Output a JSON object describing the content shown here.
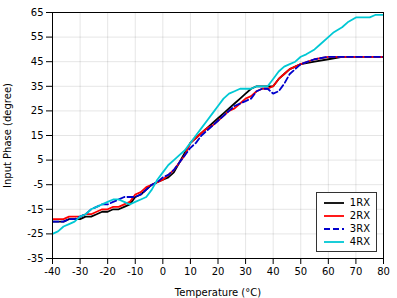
{
  "chart_data": {
    "type": "line",
    "xlabel": "Temperature (°C)",
    "ylabel": "Input Phase (degree)",
    "xlim": [
      -40,
      80
    ],
    "ylim": [
      -35,
      65
    ],
    "xticks": [
      -40,
      -30,
      -20,
      -10,
      0,
      10,
      20,
      30,
      40,
      50,
      60,
      70,
      80
    ],
    "yticks": [
      -35,
      -25,
      -15,
      -5,
      5,
      15,
      25,
      35,
      45,
      55,
      65
    ],
    "grid": true,
    "legend": "lower right",
    "series": [
      {
        "name": "1RX",
        "color": "#000000",
        "line_style": "solid",
        "x": [
          -40,
          -38,
          -36,
          -34,
          -32,
          -30,
          -28,
          -26,
          -24,
          -22,
          -20,
          -18,
          -16,
          -14,
          -12,
          -10,
          -8,
          -6,
          -4,
          -2,
          0,
          2,
          4,
          6,
          8,
          10,
          12,
          14,
          16,
          18,
          20,
          22,
          24,
          26,
          28,
          30,
          32,
          34,
          36,
          38,
          40,
          42,
          44,
          46,
          48,
          50,
          55,
          60,
          65,
          70,
          75,
          80
        ],
        "values": [
          -20,
          -20,
          -20,
          -19,
          -19,
          -19,
          -18,
          -18,
          -17,
          -16,
          -16,
          -15,
          -15,
          -14,
          -13,
          -10,
          -9,
          -7,
          -5,
          -4,
          -3,
          -2,
          0,
          4,
          8,
          12,
          14,
          16,
          18,
          20,
          22,
          24,
          26,
          28,
          30,
          32,
          34,
          35,
          35,
          35,
          35,
          38,
          40,
          42,
          43,
          44,
          45,
          46,
          47,
          47,
          47,
          47
        ]
      },
      {
        "name": "2RX",
        "color": "#ff0000",
        "line_style": "solid",
        "x": [
          -40,
          -38,
          -36,
          -34,
          -32,
          -30,
          -28,
          -26,
          -24,
          -22,
          -20,
          -18,
          -16,
          -14,
          -12,
          -10,
          -8,
          -6,
          -4,
          -2,
          0,
          2,
          4,
          6,
          8,
          10,
          12,
          14,
          16,
          18,
          20,
          22,
          24,
          26,
          28,
          30,
          32,
          34,
          36,
          38,
          40,
          42,
          44,
          46,
          48,
          50,
          55,
          60,
          65,
          70,
          75,
          80
        ],
        "values": [
          -19,
          -19,
          -19,
          -18,
          -18,
          -18,
          -17,
          -17,
          -16,
          -15,
          -15,
          -14,
          -14,
          -13,
          -12,
          -9,
          -8,
          -6,
          -5,
          -4,
          -3,
          -1,
          1,
          4,
          7,
          12,
          14,
          16,
          18,
          19,
          21,
          23,
          25,
          26,
          28,
          30,
          31,
          33,
          34,
          34,
          35,
          38,
          40,
          42,
          43,
          44,
          46,
          47,
          47,
          47,
          47,
          47
        ]
      },
      {
        "name": "3RX",
        "color": "#0000cc",
        "line_style": "dashed",
        "x": [
          -40,
          -38,
          -36,
          -34,
          -32,
          -30,
          -28,
          -26,
          -24,
          -22,
          -20,
          -18,
          -16,
          -14,
          -12,
          -10,
          -8,
          -6,
          -4,
          -2,
          0,
          2,
          4,
          6,
          8,
          10,
          12,
          14,
          16,
          18,
          20,
          22,
          24,
          26,
          28,
          30,
          32,
          34,
          36,
          38,
          40,
          42,
          44,
          46,
          48,
          50,
          55,
          60,
          65,
          70,
          75,
          80
        ],
        "values": [
          -20,
          -20,
          -20,
          -19,
          -19,
          -18,
          -17,
          -15,
          -14,
          -13,
          -13,
          -12,
          -11,
          -10,
          -10,
          -10,
          -9,
          -7,
          -5,
          -4,
          -2,
          -1,
          1,
          4,
          7,
          10,
          12,
          15,
          17,
          19,
          21,
          23,
          25,
          27,
          28,
          29,
          30,
          33,
          34,
          34,
          32,
          33,
          36,
          40,
          42,
          44,
          46,
          47,
          47,
          47,
          47,
          47
        ]
      },
      {
        "name": "4RX",
        "color": "#00c8d4",
        "line_style": "solid",
        "x": [
          -40,
          -38,
          -36,
          -34,
          -32,
          -30,
          -28,
          -26,
          -24,
          -22,
          -20,
          -18,
          -16,
          -14,
          -12,
          -10,
          -8,
          -6,
          -4,
          -2,
          0,
          2,
          4,
          6,
          8,
          10,
          12,
          14,
          16,
          18,
          20,
          22,
          24,
          26,
          28,
          30,
          32,
          34,
          36,
          38,
          40,
          42,
          44,
          46,
          48,
          50,
          52,
          55,
          57,
          60,
          62,
          65,
          67,
          70,
          72,
          75,
          77,
          80
        ],
        "values": [
          -25,
          -24,
          -22,
          -21,
          -20,
          -18,
          -17,
          -15,
          -14,
          -13,
          -12,
          -11,
          -11,
          -12,
          -13,
          -12,
          -11,
          -10,
          -7,
          -3,
          0,
          3,
          5,
          7,
          9,
          12,
          15,
          18,
          21,
          24,
          27,
          30,
          32,
          33,
          34,
          34,
          34,
          35,
          35,
          35,
          38,
          41,
          43,
          44,
          45,
          47,
          48,
          50,
          52,
          55,
          57,
          59,
          61,
          63,
          63,
          63,
          64,
          64
        ]
      }
    ]
  }
}
